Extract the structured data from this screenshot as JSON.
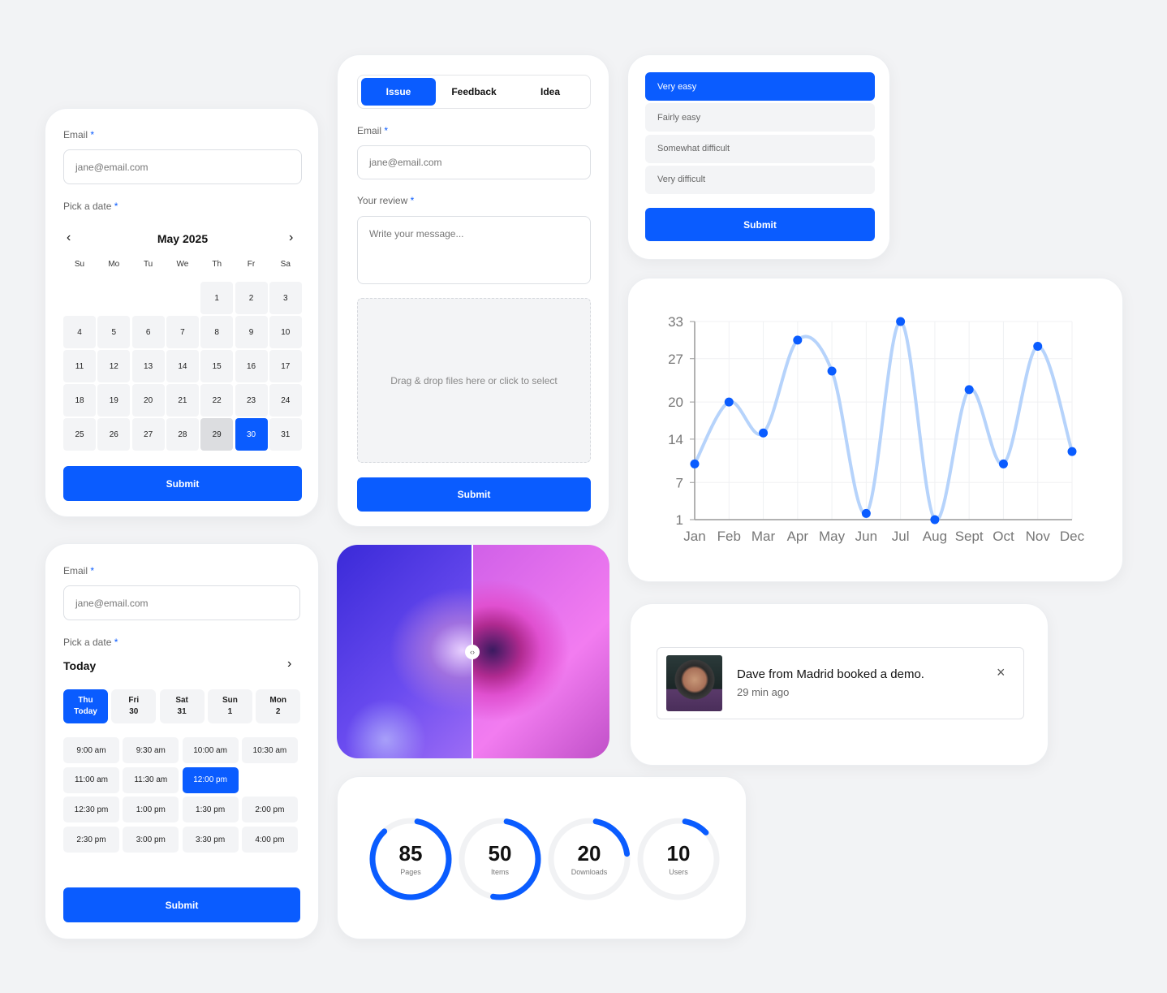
{
  "calendar_card": {
    "email_label": "Email",
    "required_mark": "*",
    "email_placeholder": "jane@email.com",
    "date_label": "Pick a date",
    "month_title": "May 2025",
    "weekdays": [
      "Su",
      "Mo",
      "Tu",
      "We",
      "Th",
      "Fr",
      "Sa"
    ],
    "weeks": [
      [
        null,
        null,
        null,
        null,
        1,
        2,
        3
      ],
      [
        4,
        5,
        6,
        7,
        8,
        9,
        10
      ],
      [
        11,
        12,
        13,
        14,
        15,
        16,
        17
      ],
      [
        18,
        19,
        20,
        21,
        22,
        23,
        24
      ],
      [
        25,
        26,
        27,
        28,
        29,
        30,
        31
      ]
    ],
    "highlighted_day": 29,
    "selected_day": 30,
    "submit_label": "Submit"
  },
  "time_card": {
    "email_label": "Email",
    "required_mark": "*",
    "email_placeholder": "jane@email.com",
    "date_label": "Pick a date",
    "day_heading": "Today",
    "days": [
      {
        "top": "Thu",
        "bottom": "Today",
        "selected": true
      },
      {
        "top": "Fri",
        "bottom": "30"
      },
      {
        "top": "Sat",
        "bottom": "31"
      },
      {
        "top": "Sun",
        "bottom": "1"
      },
      {
        "top": "Mon",
        "bottom": "2"
      }
    ],
    "slots": [
      [
        "9:00 am",
        "9:30 am",
        "10:00 am",
        "10:30 am"
      ],
      [
        "11:00 am",
        "11:30 am",
        "12:00 pm"
      ],
      [
        "12:30 pm",
        "1:00 pm",
        "1:30 pm",
        "2:00 pm"
      ],
      [
        "2:30 pm",
        "3:00 pm",
        "3:30 pm",
        "4:00 pm"
      ]
    ],
    "selected_slot": "12:00 pm",
    "submit_label": "Submit"
  },
  "review_card": {
    "tabs": [
      "Issue",
      "Feedback",
      "Idea"
    ],
    "active_tab": "Issue",
    "email_label": "Email",
    "required_mark": "*",
    "email_placeholder": "jane@email.com",
    "review_label": "Your review",
    "review_placeholder": "Write your message...",
    "dropzone_text": "Drag & drop files here or click to select",
    "submit_label": "Submit"
  },
  "difficulty_card": {
    "options": [
      "Very easy",
      "Fairly easy",
      "Somewhat difficult",
      "Very difficult"
    ],
    "selected": "Very easy",
    "submit_label": "Submit"
  },
  "chart_data": {
    "type": "line",
    "categories": [
      "Jan",
      "Feb",
      "Mar",
      "Apr",
      "May",
      "Jun",
      "Jul",
      "Aug",
      "Sept",
      "Oct",
      "Nov",
      "Dec"
    ],
    "values": [
      10,
      20,
      15,
      30,
      25,
      2,
      33,
      1,
      22,
      10,
      29,
      12
    ],
    "yticks": [
      1,
      7,
      14,
      20,
      27,
      33
    ],
    "ylim": [
      1,
      33
    ],
    "grid": true,
    "smooth": true,
    "line_color": "#b6d3fb",
    "point_color": "#0a5cff"
  },
  "notification": {
    "message": "Dave from Madrid booked a demo.",
    "time": "29 min ago",
    "close_icon": "close-icon"
  },
  "gauges": [
    {
      "value": 85,
      "label": "Pages"
    },
    {
      "value": 50,
      "label": "Items"
    },
    {
      "value": 20,
      "label": "Downloads"
    },
    {
      "value": 10,
      "label": "Users"
    }
  ],
  "colors": {
    "accent": "#0a5cff",
    "track": "#f1f2f4"
  }
}
